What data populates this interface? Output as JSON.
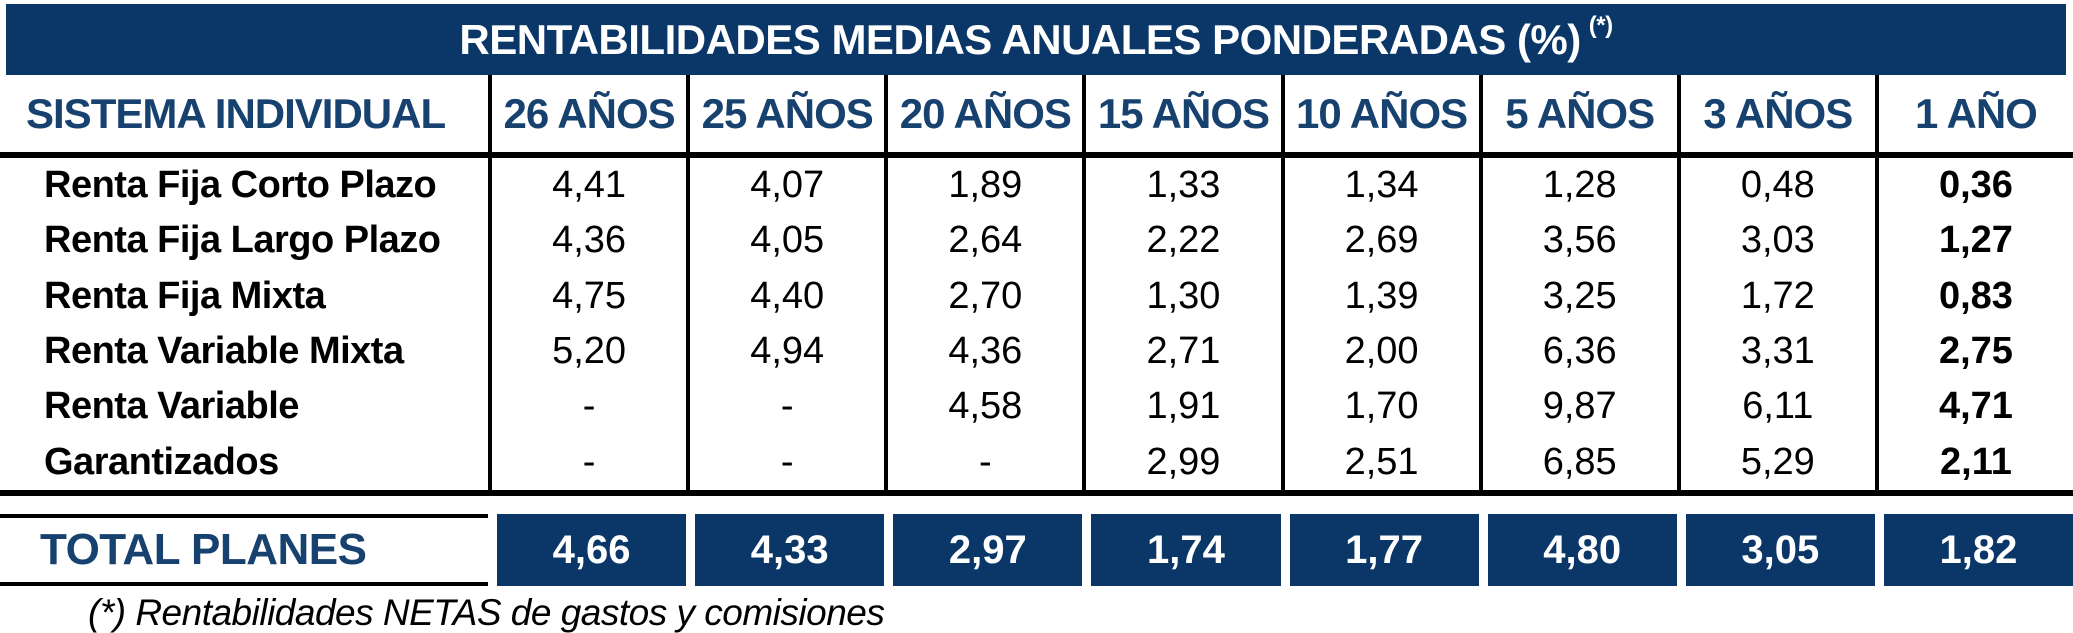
{
  "title": {
    "text": "RENTABILIDADES MEDIAS ANUALES PONDERADAS (%)",
    "sup": "(*)"
  },
  "chart_data": {
    "type": "table",
    "title": "RENTABILIDADES MEDIAS ANUALES PONDERADAS (%) (*)",
    "columns": [
      "SISTEMA INDIVIDUAL",
      "26 AÑOS",
      "25 AÑOS",
      "20 AÑOS",
      "15 AÑOS",
      "10 AÑOS",
      "5 AÑOS",
      "3 AÑOS",
      "1 AÑO"
    ],
    "rows": [
      {
        "label": "Renta Fija Corto Plazo",
        "values": [
          "4,41",
          "4,07",
          "1,89",
          "1,33",
          "1,34",
          "1,28",
          "0,48",
          "0,36"
        ]
      },
      {
        "label": "Renta Fija Largo Plazo",
        "values": [
          "4,36",
          "4,05",
          "2,64",
          "2,22",
          "2,69",
          "3,56",
          "3,03",
          "1,27"
        ]
      },
      {
        "label": "Renta Fija Mixta",
        "values": [
          "4,75",
          "4,40",
          "2,70",
          "1,30",
          "1,39",
          "3,25",
          "1,72",
          "0,83"
        ]
      },
      {
        "label": "Renta Variable Mixta",
        "values": [
          "5,20",
          "4,94",
          "4,36",
          "2,71",
          "2,00",
          "6,36",
          "3,31",
          "2,75"
        ]
      },
      {
        "label": "Renta Variable",
        "values": [
          "-",
          "-",
          "4,58",
          "1,91",
          "1,70",
          "9,87",
          "6,11",
          "4,71"
        ]
      },
      {
        "label": "Garantizados",
        "values": [
          "-",
          "-",
          "-",
          "2,99",
          "2,51",
          "6,85",
          "5,29",
          "2,11"
        ]
      }
    ],
    "total": {
      "label": "TOTAL PLANES",
      "values": [
        "4,66",
        "4,33",
        "2,97",
        "1,74",
        "1,77",
        "4,80",
        "3,05",
        "1,82"
      ]
    },
    "footnote": "(*) Rentabilidades NETAS de gastos y comisiones",
    "legend_position": "none",
    "grid": "column-separators-and-thick-rules"
  },
  "colors": {
    "navy": "#0a3768",
    "header_text": "#17416f",
    "line": "#000000",
    "title_text": "#ffffff",
    "total_value_text": "#ffffff"
  }
}
